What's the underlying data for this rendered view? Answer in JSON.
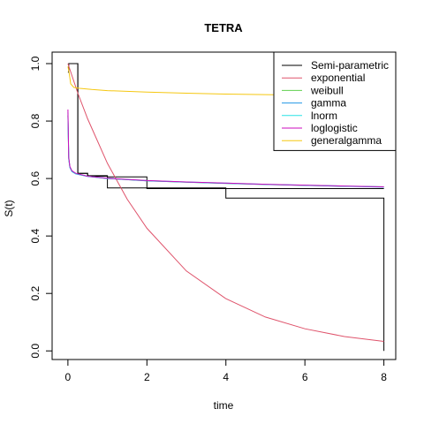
{
  "chart_data": {
    "type": "line",
    "title": "TETRA",
    "xlabel": "time",
    "ylabel": "S(t)",
    "xlim": [
      -0.4,
      8.3
    ],
    "ylim": [
      -0.03,
      1.04
    ],
    "xticks": [
      0,
      2,
      4,
      6,
      8
    ],
    "yticks": [
      0.0,
      0.2,
      0.4,
      0.6,
      0.8,
      1.0
    ],
    "ytick_labels": [
      "0.0",
      "0.2",
      "0.4",
      "0.6",
      "0.8",
      "1.0"
    ],
    "xtick_labels": [
      "0",
      "2",
      "4",
      "6",
      "8"
    ],
    "grid": false,
    "legend_position": "top-right",
    "series": [
      {
        "name": "Semi-parametric",
        "color": "#000000",
        "kind": "step",
        "x": [
          0,
          0.02,
          0.02,
          0.25,
          0.25,
          0.5,
          0.5,
          1.0,
          1.0,
          2.0,
          2.0,
          4.0,
          4.0,
          8.0,
          8.0
        ],
        "y": [
          0.97,
          0.97,
          1.0,
          1.0,
          0.618,
          0.618,
          0.608,
          0.608,
          0.567,
          0.567,
          0.565,
          0.565,
          0.532,
          0.532,
          0.0
        ],
        "upper": {
          "x": [
            0.02,
            0.25,
            0.25,
            0.5,
            0.5,
            1.0,
            1.0,
            2.0,
            2.0,
            4.0,
            4.0,
            8.0
          ],
          "y": [
            1.0,
            1.0,
            0.618,
            0.618,
            0.61,
            0.61,
            0.606,
            0.606,
            0.567,
            0.567,
            0.565,
            0.565
          ]
        }
      },
      {
        "name": "exponential",
        "color": "#DF536B",
        "x": [
          0.0,
          0.25,
          0.5,
          1.0,
          1.5,
          2.0,
          3.0,
          4.0,
          5.0,
          6.0,
          7.0,
          8.0
        ],
        "y": [
          1.0,
          0.897,
          0.808,
          0.653,
          0.528,
          0.427,
          0.278,
          0.182,
          0.118,
          0.077,
          0.05,
          0.033
        ]
      },
      {
        "name": "weibull",
        "color": "#61D04F",
        "x": [
          0.0,
          0.02,
          0.05,
          0.1,
          0.2,
          0.5,
          1.0,
          2.0,
          3.0,
          4.0,
          5.0,
          6.0,
          7.0,
          8.0
        ],
        "y": [
          0.82,
          0.67,
          0.64,
          0.625,
          0.617,
          0.608,
          0.6,
          0.592,
          0.587,
          0.583,
          0.579,
          0.576,
          0.573,
          0.571
        ]
      },
      {
        "name": "gamma",
        "color": "#2297E6",
        "x": [
          0.0,
          0.02,
          0.05,
          0.1,
          0.2,
          0.5,
          1.0,
          2.0,
          3.0,
          4.0,
          5.0,
          6.0,
          7.0,
          8.0
        ],
        "y": [
          0.82,
          0.668,
          0.638,
          0.624,
          0.616,
          0.607,
          0.6,
          0.592,
          0.587,
          0.583,
          0.579,
          0.576,
          0.573,
          0.57
        ]
      },
      {
        "name": "lnorm",
        "color": "#28E2E5",
        "x": [
          0.0,
          0.02,
          0.05,
          0.1,
          0.2,
          0.5,
          1.0,
          2.0,
          3.0,
          4.0,
          5.0,
          6.0,
          7.0,
          8.0
        ],
        "y": [
          0.83,
          0.672,
          0.64,
          0.626,
          0.617,
          0.608,
          0.601,
          0.593,
          0.588,
          0.584,
          0.58,
          0.577,
          0.574,
          0.571
        ]
      },
      {
        "name": "loglogistic",
        "color": "#CD0BBC",
        "x": [
          0.0,
          0.02,
          0.05,
          0.1,
          0.2,
          0.5,
          1.0,
          2.0,
          3.0,
          4.0,
          5.0,
          6.0,
          7.0,
          8.0
        ],
        "y": [
          0.84,
          0.675,
          0.642,
          0.627,
          0.618,
          0.608,
          0.601,
          0.593,
          0.588,
          0.584,
          0.58,
          0.577,
          0.574,
          0.571
        ]
      },
      {
        "name": "generalgamma",
        "color": "#F5C710",
        "x": [
          0.0,
          0.03,
          0.07,
          0.15,
          0.3,
          0.6,
          1.0,
          2.0,
          3.0,
          4.0,
          5.0,
          6.0,
          7.0,
          8.0
        ],
        "y": [
          0.99,
          0.97,
          0.93,
          0.917,
          0.914,
          0.91,
          0.906,
          0.901,
          0.897,
          0.894,
          0.892,
          0.89,
          0.888,
          0.886
        ]
      }
    ]
  }
}
